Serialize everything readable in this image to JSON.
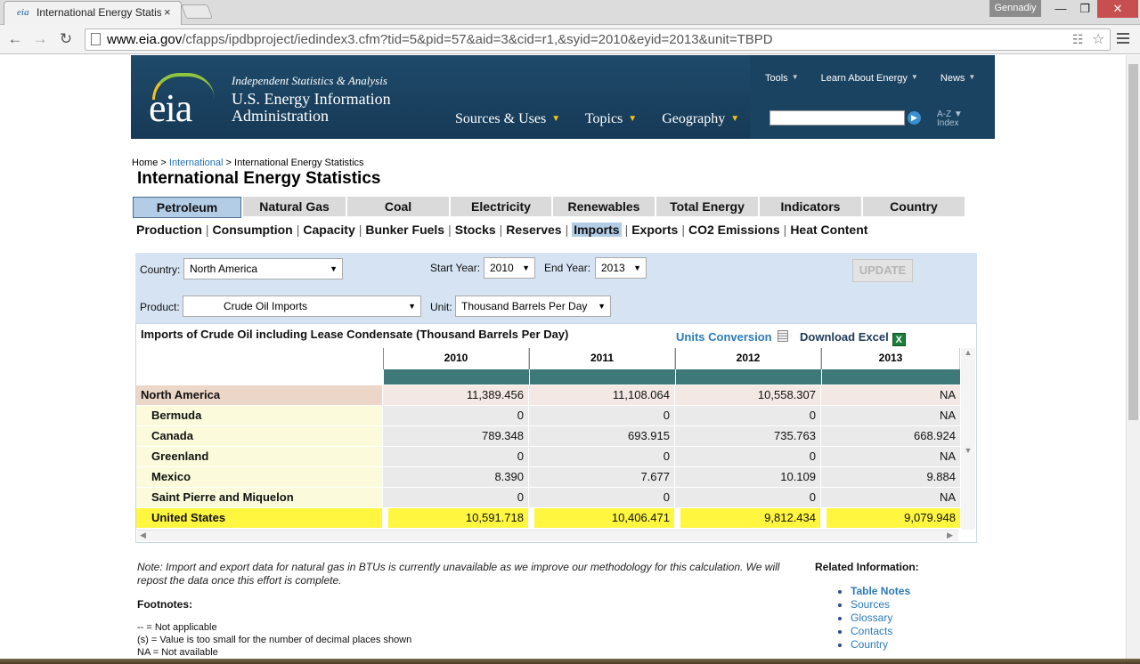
{
  "browser": {
    "tab_favicon": "eia",
    "tab_title": "International Energy Statis",
    "tab_close": "×",
    "user": "Gennadiy",
    "window_min": "—",
    "window_max": "❐",
    "window_close": "✕",
    "url_host": "www.eia.gov",
    "url_path": "/cfapps/ipdbproject/iedindex3.cfm?tid=5&pid=57&aid=3&cid=r1,&syid=2010&eyid=2013&unit=TBPD",
    "icons": [
      "back-arrow-icon",
      "forward-arrow-icon",
      "reload-icon",
      "page-icon",
      "translate-icon",
      "star-icon",
      "menu-icon"
    ]
  },
  "header": {
    "logo": "eia",
    "tagline": "Independent Statistics & Analysis",
    "org_name": "U.S. Energy Information Administration",
    "main_nav": [
      "Sources & Uses",
      "Topics",
      "Geography"
    ],
    "util_nav": [
      "Tools",
      "Learn About Energy",
      "News"
    ],
    "search_placeholder": "",
    "az_index_line1": "A-Z",
    "az_index_line2": "Index"
  },
  "breadcrumb": {
    "home": "Home",
    "sep": ">",
    "international": "International",
    "current": "International Energy Statistics"
  },
  "page_title": "International Energy Statistics",
  "category_tabs": [
    {
      "label": "Petroleum",
      "active": true
    },
    {
      "label": "Natural Gas",
      "active": false
    },
    {
      "label": "Coal",
      "active": false
    },
    {
      "label": "Electricity",
      "active": false
    },
    {
      "label": "Renewables",
      "active": false
    },
    {
      "label": "Total Energy",
      "active": false
    },
    {
      "label": "Indicators",
      "active": false
    },
    {
      "label": "Country",
      "active": false
    }
  ],
  "sub_tabs": [
    "Production",
    "Consumption",
    "Capacity",
    "Bunker Fuels",
    "Stocks",
    "Reserves",
    "Imports",
    "Exports",
    "CO2 Emissions",
    "Heat Content"
  ],
  "sub_tab_active": "Imports",
  "filters": {
    "country_label": "Country:",
    "country_value": "North America",
    "start_year_label": "Start Year:",
    "start_year_value": "2010",
    "end_year_label": "End Year:",
    "end_year_value": "2013",
    "update_label": "UPDATE",
    "product_label": "Product:",
    "product_value": "Crude Oil Imports",
    "unit_label": "Unit:",
    "unit_value": "Thousand Barrels Per Day"
  },
  "table": {
    "caption": "Imports of Crude Oil including Lease Condensate (Thousand Barrels Per Day)",
    "units_conversion": "Units Conversion",
    "download_excel": "Download Excel",
    "years": [
      "2010",
      "2011",
      "2012",
      "2013"
    ],
    "rows": [
      {
        "name": "North America",
        "type": "region",
        "values": [
          "11,389.456",
          "11,108.064",
          "10,558.307",
          "NA"
        ]
      },
      {
        "name": "Bermuda",
        "type": "country",
        "values": [
          "0",
          "0",
          "0",
          "NA"
        ]
      },
      {
        "name": "Canada",
        "type": "country",
        "values": [
          "789.348",
          "693.915",
          "735.763",
          "668.924"
        ]
      },
      {
        "name": "Greenland",
        "type": "country",
        "values": [
          "0",
          "0",
          "0",
          "NA"
        ]
      },
      {
        "name": "Mexico",
        "type": "country",
        "values": [
          "8.390",
          "7.677",
          "10.109",
          "9.884"
        ]
      },
      {
        "name": "Saint Pierre and Miquelon",
        "type": "country",
        "values": [
          "0",
          "0",
          "0",
          "NA"
        ]
      },
      {
        "name": "United States",
        "type": "highlight",
        "values": [
          "10,591.718",
          "10,406.471",
          "9,812.434",
          "9,079.948"
        ]
      }
    ]
  },
  "note": "Note: Import and export data for natural gas in BTUs is currently unavailable as we improve our methodology for this calculation. We will repost the data once this effort is complete.",
  "footnotes_title": "Footnotes:",
  "footnotes": [
    "-- = Not applicable",
    "(s) = Value is too small for the number of decimal places shown",
    "NA = Not available"
  ],
  "related_title": "Related Information:",
  "related_links": [
    {
      "label": "Table Notes",
      "bold": true
    },
    {
      "label": "Sources",
      "bold": false
    },
    {
      "label": "Glossary",
      "bold": false
    },
    {
      "label": "Contacts",
      "bold": false
    },
    {
      "label": "Country",
      "bold": false
    }
  ]
}
